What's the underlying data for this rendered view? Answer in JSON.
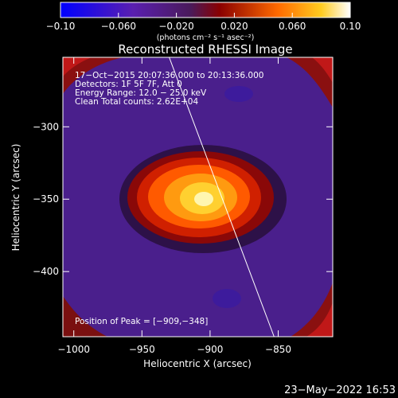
{
  "colorbar": {
    "ticks": [
      -0.1,
      -0.06,
      -0.02,
      0.02,
      0.06,
      0.1
    ],
    "tick_labels": [
      "−0.10",
      "−0.060",
      "−0.020",
      "0.020",
      "0.060",
      "0.10"
    ],
    "range": [
      -0.1,
      0.1
    ],
    "units_label": "(photons cm⁻² s⁻¹ asec⁻²)"
  },
  "chart_data": {
    "type": "heatmap",
    "title": "Reconstructed RHESSI Image",
    "xlabel": "Heliocentric X (arcsec)",
    "ylabel": "Heliocentric Y (arcsec)",
    "xlim": [
      -1008,
      -810
    ],
    "ylim": [
      -445,
      -252
    ],
    "x_ticks": [
      -1000,
      -950,
      -900,
      -850
    ],
    "x_tick_labels": [
      "−1000",
      "−950",
      "−900",
      "−850"
    ],
    "y_ticks": [
      -300,
      -350,
      -400
    ],
    "y_tick_labels": [
      "−300",
      "−350",
      "−400"
    ],
    "peak": {
      "x": -909,
      "y": -348,
      "value": 0.1
    },
    "info_lines": [
      "17−Oct−2015 20:07:36.000 to 20:13:36.000",
      "Detectors: 1F 5F 7F, Att 0",
      "Energy Range: 12.0 − 25.0 keV",
      "Clean     Total counts: 2.62E+04"
    ],
    "peak_label": "Position of Peak = [−909,−348]",
    "limb_line": [
      [
        -930,
        -252
      ],
      [
        -853,
        -445
      ]
    ]
  },
  "timestamp": "23−May−2022 16:53"
}
